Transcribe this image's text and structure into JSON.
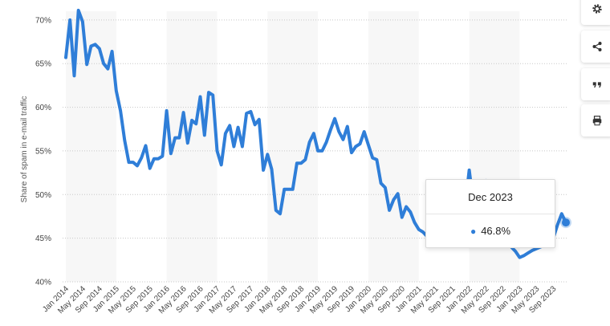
{
  "colors": {
    "line": "#2f7ed8",
    "band": "#f7f7f7",
    "grid": "#c8c8c8"
  },
  "toolbar": {
    "buttons": [
      {
        "icon": "gear-icon"
      },
      {
        "icon": "share-icon"
      },
      {
        "icon": "quote-icon"
      },
      {
        "icon": "print-icon"
      }
    ]
  },
  "tooltip": {
    "label": "Dec 2023",
    "value": "46.8%"
  },
  "chart_data": {
    "type": "line",
    "title": "",
    "xlabel": "",
    "ylabel": "Share of spam in e-mail traffic",
    "ylim": [
      40,
      71
    ],
    "y_ticks": [
      "40%",
      "45%",
      "50%",
      "55%",
      "60%",
      "65%",
      "70%"
    ],
    "grid": true,
    "x_ticks": [
      "Jan 2014",
      "May 2014",
      "Sep 2014",
      "Jan 2015",
      "May 2015",
      "Sep 2015",
      "Jan 2016",
      "May 2016",
      "Sep 2016",
      "Jan 2017",
      "May 2017",
      "Sep 2017",
      "Jan 2018",
      "May 2018",
      "Sep 2018",
      "Jan 2019",
      "May 2019",
      "Sep 2019",
      "Jan 2020",
      "May 2020",
      "Sep 2020",
      "Jan 2021",
      "May 2021",
      "Sep 2021",
      "Jan 2022",
      "May 2022",
      "Sep 2022",
      "Jan 2023",
      "May 2023",
      "Sep 2023"
    ],
    "series": [
      {
        "x": [
          "Jan 2014",
          "Feb 2014",
          "Mar 2014",
          "Apr 2014",
          "May 2014",
          "Jun 2014",
          "Jul 2014",
          "Aug 2014",
          "Sep 2014",
          "Oct 2014",
          "Nov 2014",
          "Dec 2014",
          "Jan 2015",
          "Feb 2015",
          "Mar 2015",
          "Apr 2015",
          "May 2015",
          "Jun 2015",
          "Jul 2015",
          "Aug 2015",
          "Sep 2015",
          "Oct 2015",
          "Nov 2015",
          "Dec 2015",
          "Jan 2016",
          "Feb 2016",
          "Mar 2016",
          "Apr 2016",
          "May 2016",
          "Jun 2016",
          "Jul 2016",
          "Aug 2016",
          "Sep 2016",
          "Oct 2016",
          "Nov 2016",
          "Dec 2016",
          "Jan 2017",
          "Feb 2017",
          "Mar 2017",
          "Apr 2017",
          "May 2017",
          "Jun 2017",
          "Jul 2017",
          "Aug 2017",
          "Sep 2017",
          "Oct 2017",
          "Nov 2017",
          "Dec 2017",
          "Jan 2018",
          "Feb 2018",
          "Mar 2018",
          "Apr 2018",
          "May 2018",
          "Jun 2018",
          "Jul 2018",
          "Aug 2018",
          "Sep 2018",
          "Oct 2018",
          "Nov 2018",
          "Dec 2018",
          "Jan 2019",
          "Feb 2019",
          "Mar 2019",
          "Apr 2019",
          "May 2019",
          "Jun 2019",
          "Jul 2019",
          "Aug 2019",
          "Sep 2019",
          "Oct 2019",
          "Nov 2019",
          "Dec 2019",
          "Jan 2020",
          "Feb 2020",
          "Mar 2020",
          "Apr 2020",
          "May 2020",
          "Jun 2020",
          "Jul 2020",
          "Aug 2020",
          "Sep 2020",
          "Oct 2020",
          "Nov 2020",
          "Dec 2020",
          "Jan 2021",
          "Feb 2021",
          "Mar 2021",
          "Apr 2021",
          "May 2021",
          "Jun 2021",
          "Jul 2021",
          "Aug 2021",
          "Sep 2021",
          "Oct 2021",
          "Nov 2021",
          "Dec 2021",
          "Jan 2022",
          "Feb 2022",
          "Mar 2022",
          "Apr 2022",
          "May 2022",
          "Jun 2022",
          "Jul 2022",
          "Aug 2022",
          "Sep 2022",
          "Oct 2022",
          "Nov 2022",
          "Dec 2022",
          "Jan 2023",
          "Feb 2023",
          "Mar 2023",
          "Apr 2023",
          "May 2023",
          "Jun 2023",
          "Jul 2023",
          "Aug 2023",
          "Sep 2023",
          "Oct 2023",
          "Nov 2023",
          "Dec 2023"
        ],
        "values": [
          65.7,
          70.0,
          63.6,
          71.1,
          69.8,
          64.9,
          67.0,
          67.2,
          66.7,
          65.0,
          64.4,
          66.4,
          61.9,
          59.6,
          56.2,
          53.7,
          53.7,
          53.3,
          54.2,
          55.6,
          53.0,
          54.1,
          54.1,
          54.4,
          59.6,
          54.7,
          56.5,
          56.5,
          59.4,
          55.9,
          58.5,
          58.1,
          61.2,
          56.8,
          61.7,
          61.4,
          55.0,
          53.4,
          57.0,
          57.9,
          55.5,
          57.7,
          55.5,
          59.3,
          59.5,
          58.0,
          58.6,
          52.8,
          54.6,
          52.9,
          48.2,
          47.8,
          50.6,
          50.6,
          50.6,
          53.6,
          53.6,
          54.0,
          56.0,
          57.0,
          55.0,
          55.0,
          56.0,
          57.4,
          58.7,
          57.2,
          56.3,
          57.8,
          54.8,
          55.5,
          55.8,
          57.2,
          55.7,
          54.2,
          54.0,
          51.3,
          50.8,
          48.2,
          49.4,
          50.1,
          47.4,
          48.6,
          48.0,
          46.8,
          46.0,
          45.7,
          45.2,
          44.9,
          44.6,
          44.4,
          44.3,
          44.5,
          44.8,
          45.5,
          47.0,
          48.5,
          52.8,
          49.0,
          47.2,
          46.8,
          51.6,
          48.5,
          47.0,
          46.0,
          45.0,
          44.5,
          44.0,
          43.5,
          42.8,
          43.0,
          43.3,
          43.6,
          43.8,
          44.0,
          44.2,
          44.5,
          45.0,
          46.5,
          47.8,
          46.8
        ]
      }
    ]
  }
}
